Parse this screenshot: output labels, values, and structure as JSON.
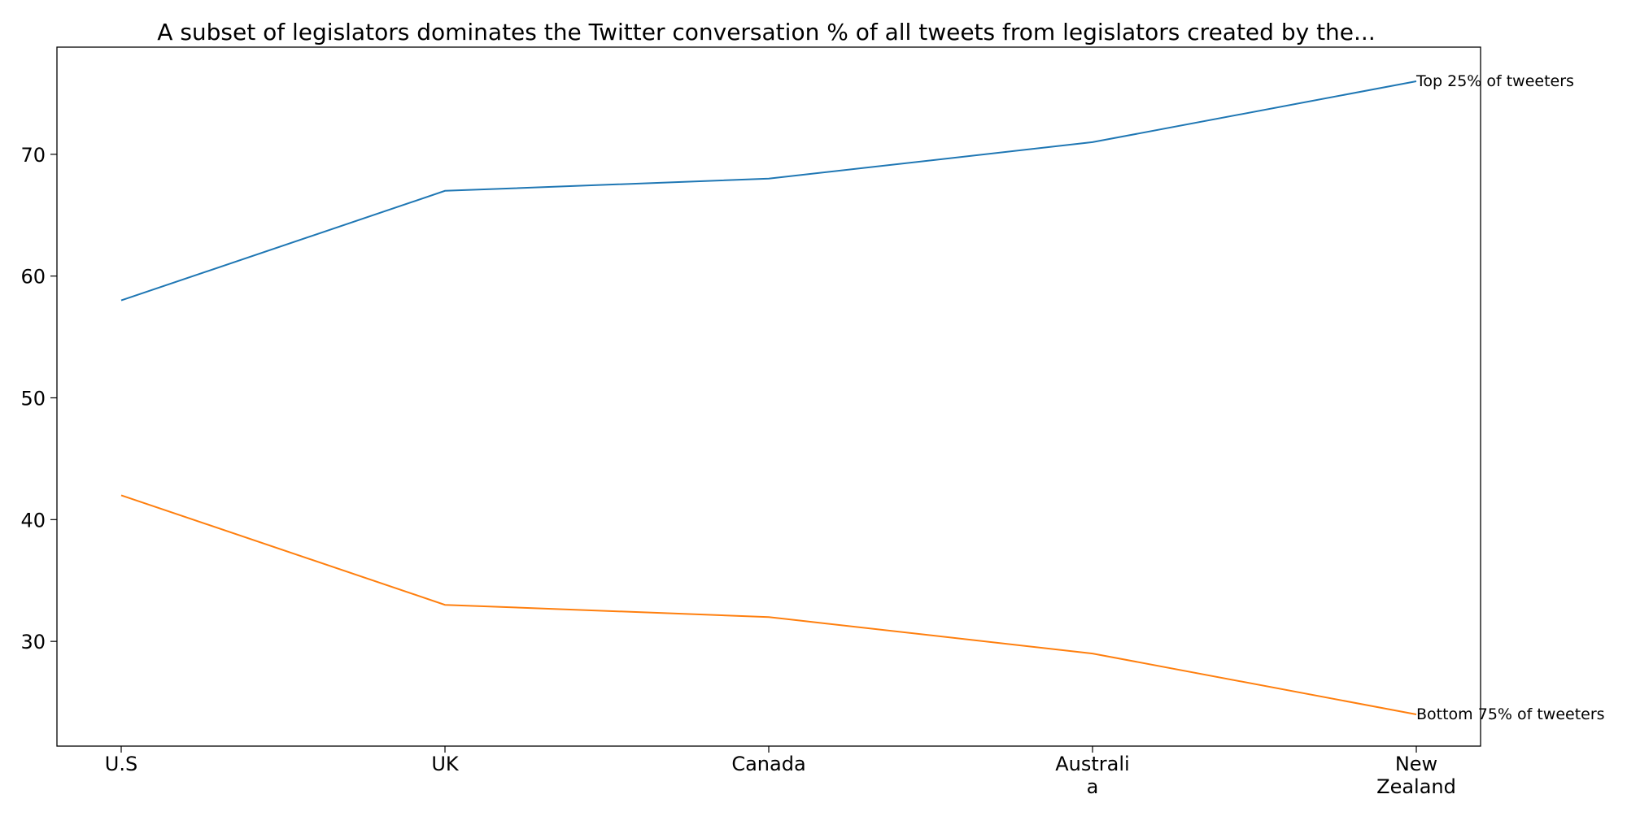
{
  "chart_data": {
    "type": "line",
    "title": "A subset of legislators dominates the Twitter conversation % of all tweets from legislators created by the...",
    "xlabel": "",
    "ylabel": "",
    "categories": [
      [
        "U.S"
      ],
      [
        "UK"
      ],
      [
        "Canada"
      ],
      [
        "Australi",
        "a"
      ],
      [
        "New",
        "Zealand"
      ]
    ],
    "series": [
      {
        "name": "Top 25% of tweeters",
        "color": "#1f77b4",
        "values": [
          58,
          67,
          68,
          71,
          76
        ]
      },
      {
        "name": "Bottom 75% of tweeters",
        "color": "#ff7f0e",
        "values": [
          42,
          33,
          32,
          29,
          24
        ]
      }
    ],
    "ylim": [
      21.4,
      78.8
    ],
    "yticks": [
      30,
      40,
      50,
      60,
      70
    ],
    "grid": false,
    "legend": "none"
  }
}
